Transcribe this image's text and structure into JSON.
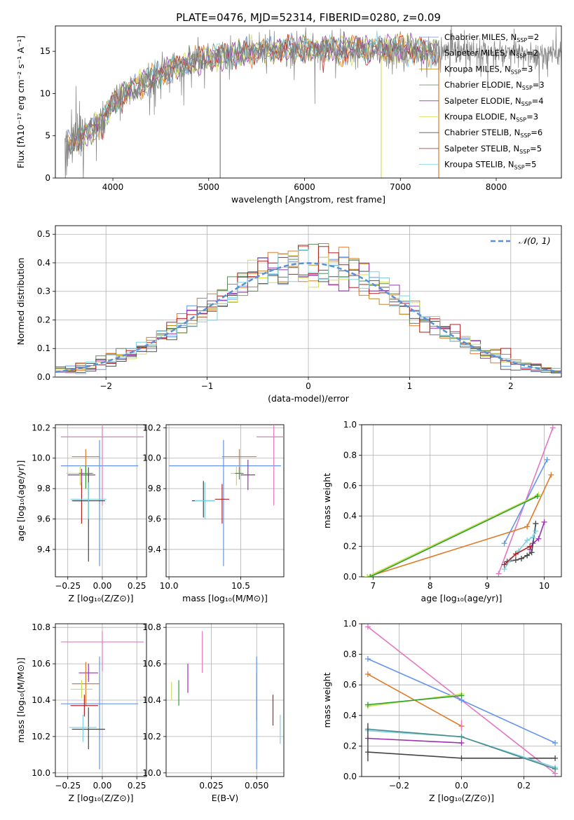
{
  "figure": {
    "title": "PLATE=0476, MJD=52314, FIBERID=0280, z=0.09"
  },
  "colors": {
    "palette": [
      "#6495ed",
      "#e07b2a",
      "#c8881e",
      "#5a8a5a",
      "#9b30b0",
      "#d4e04a",
      "#555555",
      "#b22222",
      "#7fd0e0"
    ],
    "nssp_line_colors": [
      "#6495ed",
      "#e07b2a",
      "#aaaaaa",
      "#aaaaaa",
      "#b03ab8",
      "#c8e050",
      "#444444",
      "#8b0000",
      "#7fd0e0",
      "#e377c2"
    ],
    "normal_curve": "#5b8fd6"
  },
  "chart_data": [
    {
      "id": "spectrum",
      "type": "line",
      "title": "PLATE=0476, MJD=52314, FIBERID=0280, z=0.09",
      "xlabel": "wavelength [Angstrom, rest frame]",
      "ylabel": "Flux [fλ10⁻¹⁷ erg cm⁻² s⁻¹ A⁻¹]",
      "xlim": [
        3400,
        8680
      ],
      "ylim": [
        0,
        18
      ],
      "xticks": [
        4000,
        5000,
        6000,
        7000,
        8000
      ],
      "yticks": [
        0,
        5,
        10,
        15
      ],
      "grid": false,
      "legend_position": "top-right",
      "legend": [
        {
          "name": "Chabrier MILES, N",
          "sub": "SSP",
          "suffix": "=2",
          "color": "#6495ed"
        },
        {
          "name": "Salpeter MILES, N",
          "sub": "SSP",
          "suffix": "=2",
          "color": "#a0a0a0"
        },
        {
          "name": "Kroupa MILES, N",
          "sub": "SSP",
          "suffix": "=3",
          "color": "#c8881e"
        },
        {
          "name": "Chabrier ELODIE, N",
          "sub": "SSP",
          "suffix": "=3",
          "color": "#5a8a5a"
        },
        {
          "name": "Salpeter ELODIE, N",
          "sub": "SSP",
          "suffix": "=4",
          "color": "#9b30b0"
        },
        {
          "name": "Kroupa ELODIE, N",
          "sub": "SSP",
          "suffix": "=3",
          "color": "#d4e04a"
        },
        {
          "name": "Chabrier STELIB, N",
          "sub": "SSP",
          "suffix": "=6",
          "color": "#555555"
        },
        {
          "name": "Salpeter STELIB, N",
          "sub": "SSP",
          "suffix": "=5",
          "color": "#b22222"
        },
        {
          "name": "Kroupa STELIB, N",
          "sub": "SSP",
          "suffix": "=5",
          "color": "#7fd0e0"
        }
      ],
      "continuum": {
        "x": [
          3500,
          3700,
          3900,
          4000,
          4200,
          4400,
          4600,
          4800,
          5000,
          5200,
          5500,
          5800,
          6000,
          6300,
          6600,
          7000,
          7400,
          7800,
          8200,
          8680
        ],
        "y": [
          4.0,
          5.0,
          6.8,
          9.0,
          10.5,
          11.8,
          12.8,
          13.6,
          14.2,
          14.6,
          15.0,
          15.2,
          15.3,
          15.2,
          15.3,
          15.3,
          15.0,
          14.8,
          14.7,
          14.6
        ]
      },
      "vertical_lines": [
        {
          "x": 5120,
          "y_to": 0
        },
        {
          "x": 6800,
          "y_to": 0
        },
        {
          "x": 7400,
          "y_to": 0
        }
      ]
    },
    {
      "id": "residuals",
      "type": "histogram",
      "xlabel": "(data-model)/error",
      "ylabel": "Normed distribution",
      "xlim": [
        -2.5,
        2.5
      ],
      "ylim": [
        0,
        0.53
      ],
      "xticks": [
        -2,
        -1,
        0,
        1,
        2
      ],
      "yticks": [
        0.0,
        0.1,
        0.2,
        0.3,
        0.4,
        0.5
      ],
      "grid": true,
      "legend_position": "top-right",
      "legend": [
        {
          "name": "𝒩(0, 1)",
          "style": "dashed"
        }
      ],
      "bin_width": 0.1,
      "series_count": 9
    },
    {
      "id": "age-vs-Z",
      "type": "errorbar",
      "xlabel": "Z [log₁₀(Z/Z⊙)]",
      "ylabel": "age  [log₁₀(age/yr)]",
      "xlim": [
        -0.34,
        0.32
      ],
      "ylim": [
        9.22,
        10.22
      ],
      "xticks": [
        -0.25,
        0.0,
        0.25
      ],
      "yticks": [
        9.4,
        9.6,
        9.8,
        10.0,
        10.2
      ],
      "grid": true,
      "points": [
        {
          "x": -0.02,
          "xerr": [
            0.28,
            0.28
          ],
          "y": 9.95,
          "yerr": [
            0.66,
            0.17
          ],
          "color": "#6495ed"
        },
        {
          "x": -0.12,
          "xerr": [
            0.1,
            0.1
          ],
          "y": 10.01,
          "yerr": [
            0.1,
            0.05
          ],
          "color": "#e07b2a"
        },
        {
          "x": 0.0,
          "xerr": [
            0.3,
            0.3
          ],
          "y": 10.14,
          "yerr": [
            0.45,
            0.1
          ],
          "color": "#e377c2"
        },
        {
          "x": -0.15,
          "xerr": [
            0.1,
            0.1
          ],
          "y": 9.89,
          "yerr": [
            0.06,
            0.04
          ],
          "color": "#9b30b0"
        },
        {
          "x": -0.16,
          "xerr": [
            0.1,
            0.1
          ],
          "y": 9.9,
          "yerr": [
            0.08,
            0.05
          ],
          "color": "#c8e050"
        },
        {
          "x": -0.15,
          "xerr": [
            0.06,
            0.06
          ],
          "y": 9.72,
          "yerr": [
            0.15,
            0.12
          ],
          "color": "#b22222"
        },
        {
          "x": -0.1,
          "xerr": [
            0.12,
            0.12
          ],
          "y": 9.72,
          "yerr": [
            0.4,
            0.22
          ],
          "color": "#444444"
        },
        {
          "x": -0.1,
          "xerr": [
            0.13,
            0.13
          ],
          "y": 9.73,
          "yerr": [
            0.13,
            0.11
          ],
          "color": "#7fd0e0"
        },
        {
          "x": -0.12,
          "xerr": [
            0.05,
            0.05
          ],
          "y": 9.9,
          "yerr": [
            0.1,
            0.05
          ],
          "color": "#2ca02c"
        }
      ]
    },
    {
      "id": "age-vs-mass",
      "type": "errorbar",
      "xlabel": "mass [log₁₀(M/M⊙)]",
      "ylabel": "",
      "xlim": [
        9.98,
        10.8
      ],
      "ylim": [
        9.22,
        10.22
      ],
      "xticks": [
        10.0,
        10.5
      ],
      "yticks": [
        9.4,
        9.6,
        9.8,
        10.0,
        10.2
      ],
      "grid": true,
      "points": [
        {
          "x": 10.38,
          "xerr": [
            0.38,
            0.4
          ],
          "y": 9.95,
          "yerr": [
            0.66,
            0.17
          ],
          "color": "#6495ed"
        },
        {
          "x": 10.49,
          "xerr": [
            0.12,
            0.12
          ],
          "y": 10.01,
          "yerr": [
            0.1,
            0.05
          ],
          "color": "#e07b2a"
        },
        {
          "x": 10.73,
          "xerr": [
            0.12,
            0.12
          ],
          "y": 10.14,
          "yerr": [
            0.45,
            0.1
          ],
          "color": "#e377c2"
        },
        {
          "x": 10.55,
          "xerr": [
            0.05,
            0.05
          ],
          "y": 9.89,
          "yerr": [
            0.1,
            0.1
          ],
          "color": "#9b30b0"
        },
        {
          "x": 10.47,
          "xerr": [
            0.04,
            0.04
          ],
          "y": 9.9,
          "yerr": [
            0.08,
            0.05
          ],
          "color": "#c8e050"
        },
        {
          "x": 10.37,
          "xerr": [
            0.05,
            0.05
          ],
          "y": 9.73,
          "yerr": [
            0.16,
            0.1
          ],
          "color": "#b22222"
        },
        {
          "x": 10.24,
          "xerr": [
            0.08,
            0.08
          ],
          "y": 9.72,
          "yerr": [
            0.11,
            0.13
          ],
          "color": "#444444"
        },
        {
          "x": 10.25,
          "xerr": [
            0.07,
            0.07
          ],
          "y": 9.72,
          "yerr": [
            0.12,
            0.12
          ],
          "color": "#7fd0e0"
        },
        {
          "x": 10.49,
          "xerr": [
            0.03,
            0.03
          ],
          "y": 9.9,
          "yerr": [
            0.04,
            0.04
          ],
          "color": "#2ca02c"
        }
      ]
    },
    {
      "id": "mass-weight-vs-age",
      "type": "line",
      "xlabel": "age  [log₁₀(age/yr)]",
      "ylabel": "mass weight",
      "xlim": [
        6.8,
        10.3
      ],
      "ylim": [
        0,
        1.0
      ],
      "xticks": [
        7,
        8,
        9,
        10
      ],
      "yticks": [
        0.0,
        0.2,
        0.4,
        0.6,
        0.8,
        1.0
      ],
      "grid": true,
      "series": [
        {
          "color": "#e377c2",
          "x": [
            9.2,
            10.15
          ],
          "y": [
            0.02,
            0.98
          ]
        },
        {
          "color": "#6495ed",
          "x": [
            9.3,
            10.05
          ],
          "y": [
            0.22,
            0.77
          ]
        },
        {
          "color": "#e07b2a",
          "x": [
            6.9,
            9.7,
            10.12
          ],
          "y": [
            0.0,
            0.33,
            0.67
          ]
        },
        {
          "color": "#c8e050",
          "x": [
            6.9,
            9.9
          ],
          "y": [
            0.0,
            0.54
          ]
        },
        {
          "color": "#2ca02c",
          "x": [
            6.95,
            9.88
          ],
          "y": [
            0.0,
            0.53
          ]
        },
        {
          "color": "#9b30b0",
          "x": [
            9.75,
            9.8,
            9.9,
            10.0
          ],
          "y": [
            0.18,
            0.22,
            0.25,
            0.36
          ]
        },
        {
          "color": "#444444",
          "x": [
            9.35,
            9.5,
            9.6,
            9.7,
            9.78,
            9.85
          ],
          "y": [
            0.1,
            0.11,
            0.12,
            0.14,
            0.16,
            0.35
          ]
        },
        {
          "color": "#7fd0e0",
          "x": [
            9.3,
            9.4,
            9.55,
            9.7,
            9.8,
            9.85
          ],
          "y": [
            0.05,
            0.11,
            0.17,
            0.24,
            0.26,
            0.3
          ]
        },
        {
          "color": "#b22222",
          "x": [
            9.3,
            9.5,
            9.75
          ],
          "y": [
            0.08,
            0.15,
            0.2
          ]
        }
      ]
    },
    {
      "id": "mass-vs-Z",
      "type": "errorbar",
      "xlabel": "Z [log₁₀(Z/Z⊙)]",
      "ylabel": "mass [log₁₀(M/M⊙)]",
      "xlim": [
        -0.34,
        0.32
      ],
      "ylim": [
        9.98,
        10.82
      ],
      "xticks": [
        -0.25,
        0.0,
        0.25
      ],
      "yticks": [
        10.0,
        10.2,
        10.4,
        10.6,
        10.8
      ],
      "grid": true,
      "points": [
        {
          "x": 0.0,
          "xerr": [
            0.3,
            0.3
          ],
          "y": 10.72,
          "yerr": [
            0.16,
            0.06
          ],
          "color": "#e377c2"
        },
        {
          "x": -0.1,
          "xerr": [
            0.07,
            0.07
          ],
          "y": 10.55,
          "yerr": [
            0.05,
            0.05
          ],
          "color": "#9b30b0"
        },
        {
          "x": -0.12,
          "xerr": [
            0.1,
            0.1
          ],
          "y": 10.49,
          "yerr": [
            0.12,
            0.12
          ],
          "color": "#e07b2a"
        },
        {
          "x": -0.15,
          "xerr": [
            0.08,
            0.08
          ],
          "y": 10.46,
          "yerr": [
            0.05,
            0.05
          ],
          "color": "#c8e050"
        },
        {
          "x": -0.02,
          "xerr": [
            0.28,
            0.28
          ],
          "y": 10.38,
          "yerr": [
            0.36,
            0.26
          ],
          "color": "#6495ed"
        },
        {
          "x": -0.13,
          "xerr": [
            0.1,
            0.1
          ],
          "y": 10.37,
          "yerr": [
            0.06,
            0.06
          ],
          "color": "#b22222"
        },
        {
          "x": -0.1,
          "xerr": [
            0.12,
            0.12
          ],
          "y": 10.24,
          "yerr": [
            0.11,
            0.12
          ],
          "color": "#444444"
        },
        {
          "x": -0.14,
          "xerr": [
            0.1,
            0.1
          ],
          "y": 10.25,
          "yerr": [
            0.08,
            0.07
          ],
          "color": "#7fd0e0"
        }
      ]
    },
    {
      "id": "mass-vs-ebv",
      "type": "errorbar",
      "xlabel": "E(B-V)",
      "ylabel": "",
      "xlim": [
        0.0,
        0.065
      ],
      "ylim": [
        9.98,
        10.82
      ],
      "xticks": [
        0.025,
        0.05
      ],
      "xtick_labels": [
        "0.025",
        "0.050"
      ],
      "yticks": [
        10.0,
        10.2,
        10.4,
        10.6,
        10.8
      ],
      "grid": true,
      "points": [
        {
          "x": 0.02,
          "xerr": [
            0,
            0
          ],
          "y": 10.67,
          "yerr": [
            0.12,
            0.11
          ],
          "color": "#e377c2"
        },
        {
          "x": 0.012,
          "xerr": [
            0,
            0
          ],
          "y": 10.52,
          "yerr": [
            0.08,
            0.08
          ],
          "color": "#9b30b0"
        },
        {
          "x": 0.003,
          "xerr": [
            0,
            0
          ],
          "y": 10.45,
          "yerr": [
            0.05,
            0.05
          ],
          "color": "#c8e050"
        },
        {
          "x": 0.007,
          "xerr": [
            0,
            0
          ],
          "y": 10.44,
          "yerr": [
            0.07,
            0.07
          ],
          "color": "#2ca02c"
        },
        {
          "x": 0.05,
          "xerr": [
            0,
            0
          ],
          "y": 10.42,
          "yerr": [
            0.13,
            0.13
          ],
          "color": "#e07b2a"
        },
        {
          "x": 0.05,
          "xerr": [
            0,
            0
          ],
          "y": 10.32,
          "yerr": [
            0.3,
            0.32
          ],
          "color": "#6495ed"
        },
        {
          "x": 0.059,
          "xerr": [
            0,
            0
          ],
          "y": 10.34,
          "yerr": [
            0.08,
            0.09
          ],
          "color": "#b22222"
        },
        {
          "x": 0.063,
          "xerr": [
            0,
            0
          ],
          "y": 10.24,
          "yerr": [
            0.08,
            0.08
          ],
          "color": "#7fd0e0"
        }
      ]
    },
    {
      "id": "mass-weight-vs-Z",
      "type": "line",
      "xlabel": "Z [log₁₀(Z/Z⊙)]",
      "ylabel": "mass weight",
      "xlim": [
        -0.32,
        0.32
      ],
      "ylim": [
        0,
        1.0
      ],
      "xticks": [
        -0.2,
        0.0,
        0.2
      ],
      "yticks": [
        0.0,
        0.2,
        0.4,
        0.6,
        0.8,
        1.0
      ],
      "grid": true,
      "series": [
        {
          "color": "#e377c2",
          "x": [
            -0.3,
            0.0,
            0.3
          ],
          "y": [
            0.98,
            0.5,
            0.02
          ]
        },
        {
          "color": "#6495ed",
          "x": [
            -0.3,
            0.0,
            0.3
          ],
          "y": [
            0.77,
            0.5,
            0.22
          ]
        },
        {
          "color": "#e07b2a",
          "x": [
            -0.3,
            0.0
          ],
          "y": [
            0.67,
            0.33
          ]
        },
        {
          "color": "#c8e050",
          "x": [
            -0.3,
            0.0
          ],
          "y": [
            0.46,
            0.54
          ]
        },
        {
          "color": "#2ca02c",
          "x": [
            -0.3,
            0.0
          ],
          "y": [
            0.47,
            0.53
          ]
        },
        {
          "color": "#9b30b0",
          "x": [
            -0.3,
            0.0
          ],
          "y": [
            0.25,
            0.22
          ]
        },
        {
          "color": "#444444",
          "x": [
            -0.3,
            0.0,
            0.3
          ],
          "y": [
            0.16,
            0.12,
            0.12
          ]
        },
        {
          "color": "#7fd0e0",
          "x": [
            -0.3,
            0.0,
            0.3
          ],
          "y": [
            0.3,
            0.26,
            0.06
          ]
        },
        {
          "color": "#4b8b8b",
          "x": [
            -0.3,
            0.0,
            0.3
          ],
          "y": [
            0.31,
            0.26,
            0.05
          ]
        }
      ],
      "vertical_markers": [
        {
          "x": -0.3,
          "y": [
            0.1,
            0.35
          ],
          "color": "#444444"
        },
        {
          "x": 0.0,
          "y": [
            0.3,
            0.37
          ],
          "color": "#e377c2"
        }
      ]
    }
  ]
}
